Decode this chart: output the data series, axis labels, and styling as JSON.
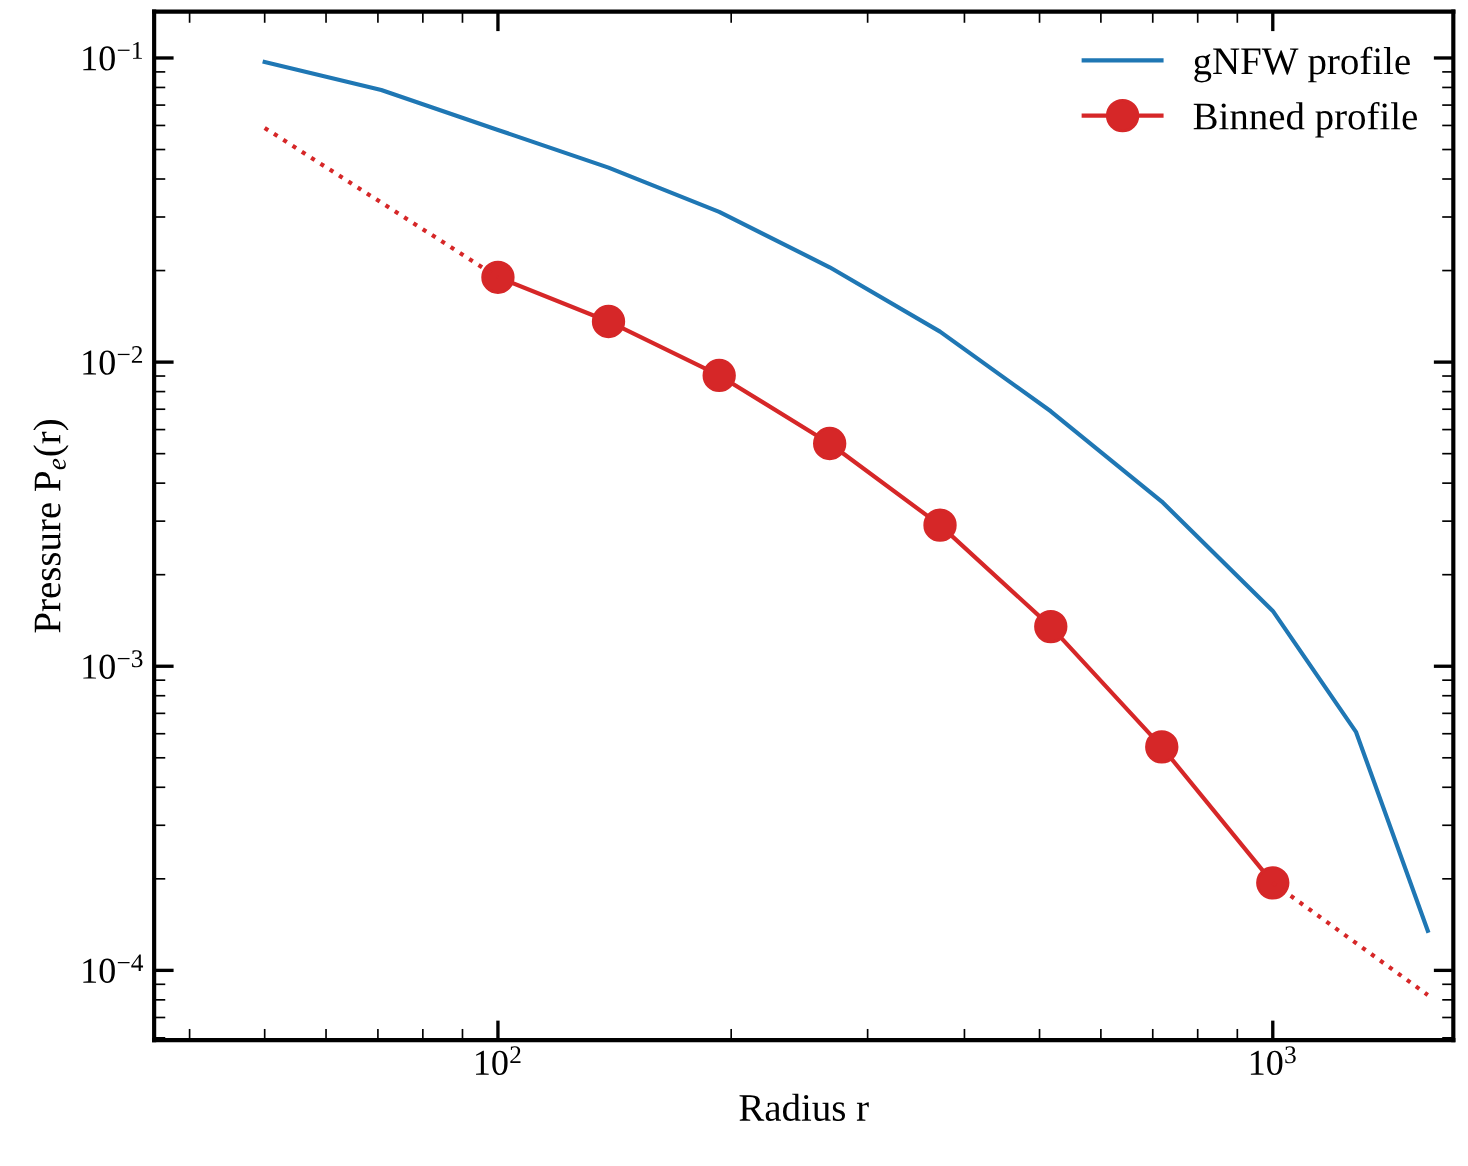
{
  "chart_data": {
    "type": "line",
    "xlabel": "Radius r",
    "ylabel": "Pressure P$_{e}$(r)",
    "log": "xy",
    "xlim": [
      36,
      1710
    ],
    "ylim": [
      5.9e-05,
      0.142
    ],
    "xticks": [
      {
        "value": 100,
        "label": "10$^{2}$"
      },
      {
        "value": 1000,
        "label": "10$^{3}$"
      }
    ],
    "yticks": [
      {
        "value": 0.0001,
        "label": "10$^{−4}$"
      },
      {
        "value": 0.001,
        "label": "10$^{−3}$"
      },
      {
        "value": 0.01,
        "label": "10$^{−2}$"
      },
      {
        "value": 0.1,
        "label": "10$^{−1}$"
      }
    ],
    "grid": false,
    "legend": "top right",
    "series": [
      {
        "name": "gNFW profile",
        "color": "#1f77b4",
        "marker": "none",
        "line_style": "solid",
        "x": [
          50,
          70.7,
          100,
          138.9,
          193,
          268,
          372,
          517,
          719,
          1000,
          1281,
          1585
        ],
        "values": [
          0.097,
          0.0785,
          0.058,
          0.0436,
          0.0312,
          0.0205,
          0.0126,
          0.00689,
          0.00348,
          0.00152,
          0.000607,
          0.000135
        ]
      },
      {
        "name": "Binned profile",
        "color": "#d62728",
        "marker": "circle",
        "line_style": "solid",
        "x": [
          100,
          138.9,
          193,
          268,
          372,
          517,
          719,
          1000
        ],
        "values": [
          0.019,
          0.0136,
          0.00904,
          0.0054,
          0.00291,
          0.00135,
          0.000543,
          0.000194
        ]
      },
      {
        "color": "#d62728",
        "marker": "none",
        "line_style": "dotted",
        "x": [
          50,
          100
        ],
        "values": [
          0.0589,
          0.019
        ]
      },
      {
        "color": "#d62728",
        "marker": "none",
        "line_style": "dotted",
        "x": [
          1000,
          1585
        ],
        "values": [
          0.000194,
          8.3e-05
        ]
      }
    ]
  }
}
